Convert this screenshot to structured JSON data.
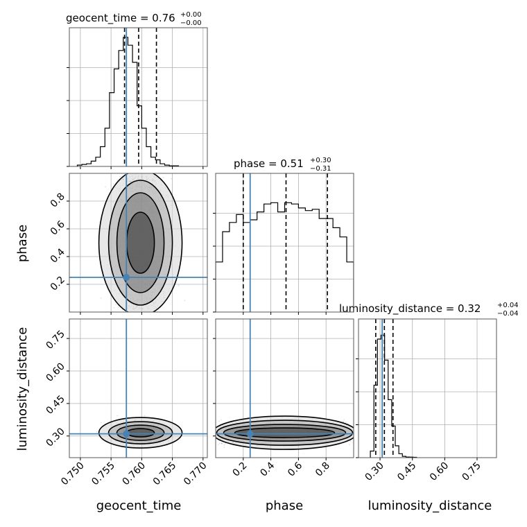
{
  "chart_data": {
    "type": "corner",
    "parameters": [
      "geocent_time",
      "phase",
      "luminosity_distance"
    ],
    "truths": {
      "geocent_time": 0.7575,
      "phase": 0.25,
      "luminosity_distance": 0.31
    },
    "titles": {
      "geocent_time": {
        "text": "geocent_time = 0.76",
        "sup": "+0.00",
        "sub": "−0.00"
      },
      "phase": {
        "text": "phase = 0.51",
        "sup": "+0.30",
        "sub": "−0.31"
      },
      "luminosity_distance": {
        "text": "luminosity_distance = 0.32",
        "sup": "+0.04",
        "sub": "−0.04"
      }
    },
    "axes": {
      "geocent_time": {
        "label": "geocent_time",
        "range": [
          0.7482,
          0.7707
        ],
        "ticks": [
          0.75,
          0.755,
          0.76,
          0.765,
          0.77
        ],
        "tick_labels": [
          "0.750",
          "0.755",
          "0.760",
          "0.765",
          "0.770"
        ]
      },
      "phase": {
        "label": "phase",
        "range": [
          0.0,
          1.0
        ],
        "ticks": [
          0.2,
          0.4,
          0.6,
          0.8
        ],
        "tick_labels": [
          "0.2",
          "0.4",
          "0.6",
          "0.8"
        ]
      },
      "luminosity_distance": {
        "label": "luminosity_distance",
        "range": [
          0.2,
          0.84
        ],
        "ticks": [
          0.3,
          0.45,
          0.6,
          0.75
        ],
        "tick_labels": [
          "0.30",
          "0.45",
          "0.60",
          "0.75"
        ]
      }
    },
    "quantiles": {
      "geocent_time": [
        0.7572,
        0.7595,
        0.7624
      ],
      "phase": [
        0.2,
        0.51,
        0.81
      ],
      "luminosity_distance": [
        0.28,
        0.32,
        0.36
      ]
    },
    "histograms": {
      "geocent_time": {
        "edges_start": 0.7495,
        "bin_width": 0.00075,
        "counts": [
          0.01,
          0.015,
          0.02,
          0.04,
          0.07,
          0.15,
          0.29,
          0.56,
          0.74,
          0.88,
          0.98,
          0.92,
          0.79,
          0.46,
          0.29,
          0.15,
          0.07,
          0.05,
          0.02,
          0.01,
          0.005,
          0.005
        ]
      },
      "phase": {
        "edges_start": 0.0,
        "bin_width": 0.05,
        "counts": [
          0.38,
          0.61,
          0.68,
          0.74,
          0.68,
          0.7,
          0.76,
          0.82,
          0.83,
          0.76,
          0.83,
          0.82,
          0.79,
          0.77,
          0.78,
          0.71,
          0.71,
          0.64,
          0.57,
          0.38
        ]
      },
      "luminosity_distance": {
        "edges_start": 0.255,
        "bin_width": 0.0165,
        "counts": [
          0.05,
          0.55,
          0.9,
          0.93,
          0.74,
          0.44,
          0.24,
          0.09,
          0.03,
          0.01,
          0.005,
          0.004,
          0.003
        ]
      }
    },
    "grid": true
  }
}
